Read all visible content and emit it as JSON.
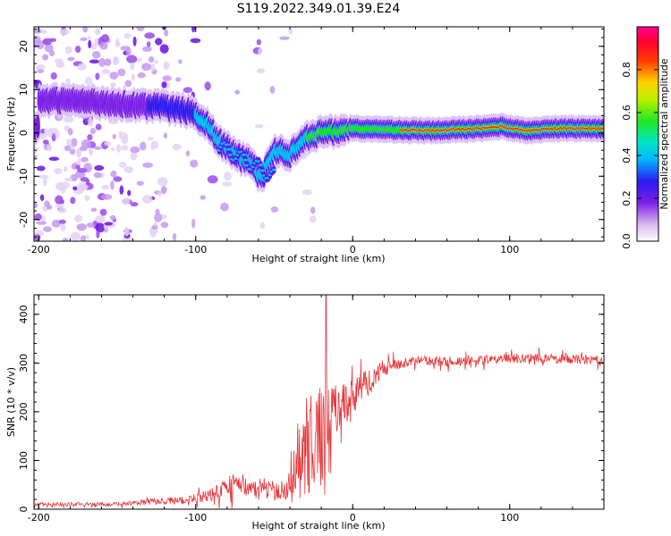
{
  "title": "S119.2022.349.01.39.E24",
  "chart_data": [
    {
      "type": "heatmap",
      "xlabel": "Height of straight line (km)",
      "ylabel": "Frequency (Hz)",
      "xlim": [
        -203,
        160
      ],
      "ylim": [
        -25,
        24.5
      ],
      "x_ticks": [
        -200,
        -100,
        0,
        100
      ],
      "y_ticks": [
        20,
        10,
        0,
        -10,
        -20
      ],
      "grid": false,
      "ridge": [
        {
          "x": -200,
          "y": 7.5
        },
        {
          "x": -180,
          "y": 7.5
        },
        {
          "x": -160,
          "y": 7.0
        },
        {
          "x": -140,
          "y": 6.5
        },
        {
          "x": -120,
          "y": 6.0
        },
        {
          "x": -105,
          "y": 5.0
        },
        {
          "x": -95,
          "y": 3.0
        },
        {
          "x": -85,
          "y": -2.0
        },
        {
          "x": -75,
          "y": -5.0
        },
        {
          "x": -65,
          "y": -7.0
        },
        {
          "x": -58,
          "y": -10.5
        },
        {
          "x": -50,
          "y": -4.0
        },
        {
          "x": -40,
          "y": -5.0
        },
        {
          "x": -30,
          "y": -1.0
        },
        {
          "x": -20,
          "y": 0.0
        },
        {
          "x": -10,
          "y": 0.5
        },
        {
          "x": 0,
          "y": 1.0
        },
        {
          "x": 20,
          "y": 0.8
        },
        {
          "x": 50,
          "y": 0.5
        },
        {
          "x": 80,
          "y": 1.0
        },
        {
          "x": 95,
          "y": 1.5
        },
        {
          "x": 110,
          "y": 0.5
        },
        {
          "x": 130,
          "y": 1.0
        },
        {
          "x": 160,
          "y": 1.0
        }
      ],
      "colorbar": {
        "label": "Normalized spectral amplitude",
        "range": [
          0,
          1
        ],
        "ticks": [
          "0.0",
          "0.2",
          "0.4",
          "0.6",
          "0.8"
        ],
        "colormap": "rainbow (white-violet-blue-cyan-green-yellow-red-magenta)"
      }
    },
    {
      "type": "line",
      "xlabel": "Height of straight line (km)",
      "ylabel": "SNR (10 * v/v)",
      "xlim": [
        -203,
        160
      ],
      "ylim": [
        0,
        440
      ],
      "x_ticks": [
        -200,
        -100,
        0,
        100
      ],
      "y_ticks": [
        0,
        100,
        200,
        300,
        400
      ],
      "grid": false,
      "series": [
        {
          "color": "#e8373a",
          "x": [
            -203,
            -150,
            -130,
            -110,
            -100,
            -90,
            -80,
            -72,
            -65,
            -55,
            -45,
            -38,
            -35,
            -30,
            -25,
            -20,
            -17,
            -13,
            -10,
            -5,
            0,
            5,
            10,
            15,
            20,
            25,
            30,
            35,
            40,
            50,
            60,
            80,
            100,
            120,
            140,
            160
          ],
          "y": [
            10,
            10,
            15,
            18,
            22,
            30,
            45,
            55,
            40,
            45,
            30,
            60,
            120,
            160,
            170,
            180,
            170,
            230,
            200,
            220,
            230,
            250,
            260,
            275,
            290,
            295,
            300,
            302,
            303,
            305,
            303,
            305,
            310,
            310,
            308,
            305
          ],
          "noise": [
            4,
            4,
            6,
            8,
            10,
            14,
            20,
            26,
            18,
            22,
            16,
            35,
            60,
            70,
            75,
            75,
            60,
            50,
            45,
            40,
            35,
            30,
            28,
            22,
            18,
            14,
            12,
            10,
            10,
            10,
            10,
            10,
            10,
            10,
            10,
            10
          ],
          "peak": {
            "x": -17,
            "y": 440
          }
        }
      ]
    }
  ]
}
